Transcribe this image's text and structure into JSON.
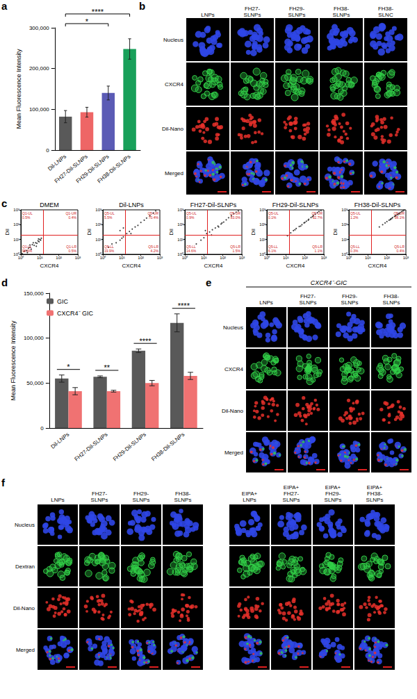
{
  "chart_data": [
    {
      "panel": "a",
      "type": "bar",
      "y_label": "Mean Fluorescence Intensity",
      "categories": [
        "Dil-LNPs",
        "FH27-Dil-SLNPs",
        "FH29-Dil-SLNPs",
        "FH38-Dil-SLNPs"
      ],
      "values": [
        82000,
        93000,
        140000,
        248000
      ],
      "errors": [
        15000,
        12000,
        17000,
        25000
      ],
      "colors": [
        "#595959",
        "#ee6666",
        "#5b5bb5",
        "#19a05a"
      ],
      "ylim": [
        0,
        300000
      ],
      "yticks": [
        0,
        100000,
        200000,
        300000
      ],
      "grid": false,
      "annotations": [
        {
          "from": 0,
          "to": 2,
          "text": "*"
        },
        {
          "from": 0,
          "to": 3,
          "text": "****"
        }
      ]
    },
    {
      "panel": "c",
      "type": "scatter",
      "title": "DMEM",
      "x_label": "CXCR4",
      "y_label": "Dil",
      "log": true,
      "xlim": [
        1,
        1000
      ],
      "ylim": [
        1,
        1000
      ],
      "xticks": [
        {
          "value": 1,
          "label": "10⁰"
        },
        {
          "value": 10,
          "label": "10¹"
        },
        {
          "value": 100,
          "label": "10²"
        },
        {
          "value": 1000,
          "label": "10³"
        }
      ],
      "yticks": [
        {
          "value": 1,
          "label": "10⁰"
        },
        {
          "value": 10,
          "label": "10¹"
        },
        {
          "value": 100,
          "label": "10²"
        },
        {
          "value": 1000,
          "label": "10³"
        }
      ],
      "x": [
        1.2,
        1.5,
        2,
        2.5,
        3,
        3.5,
        4,
        5,
        6,
        7,
        8,
        9,
        10,
        11,
        12,
        2.2,
        4.5,
        6.5,
        3,
        8.5
      ],
      "y": [
        1.1,
        1.6,
        1.8,
        2.6,
        3,
        2.2,
        4.5,
        4,
        6,
        5.5,
        8,
        7,
        10,
        9,
        12,
        1.3,
        6,
        3.5,
        4.2,
        11
      ],
      "gate": {
        "x": 15,
        "y": 20
      },
      "quadrants": [
        {
          "position": "UL",
          "label": "Q1-UL",
          "value": 0.5,
          "value_label": "0.5%"
        },
        {
          "position": "UR",
          "label": "Q1-UR",
          "value": 0.4,
          "value_label": "0.4%"
        },
        {
          "position": "LL",
          "label": "Q1-LL",
          "value": 98.6,
          "value_label": "98.6%"
        },
        {
          "position": "LR",
          "label": "Q1-LR",
          "value": 0.5,
          "value_label": "0.5%"
        }
      ]
    },
    {
      "panel": "c",
      "type": "scatter",
      "title": "Dil-LNPs",
      "x_label": "CXCR4",
      "y_label": "Dil",
      "log": true,
      "xlim": [
        1,
        1000
      ],
      "ylim": [
        1,
        1000
      ],
      "xticks": [
        {
          "value": 1,
          "label": "10⁰"
        },
        {
          "value": 10,
          "label": "10¹"
        },
        {
          "value": 100,
          "label": "10²"
        },
        {
          "value": 1000,
          "label": "10³"
        }
      ],
      "yticks": [
        {
          "value": 1,
          "label": "10⁰"
        },
        {
          "value": 10,
          "label": "10¹"
        },
        {
          "value": 100,
          "label": "10²"
        },
        {
          "value": 1000,
          "label": "10³"
        }
      ],
      "x": [
        2,
        3,
        5,
        8,
        10,
        12,
        18,
        25,
        35,
        50,
        70,
        100,
        150,
        200,
        300,
        450,
        600,
        8,
        12,
        30
      ],
      "y": [
        3,
        5,
        6,
        9,
        12,
        15,
        25,
        35,
        50,
        70,
        90,
        140,
        200,
        280,
        400,
        600,
        850,
        40,
        60,
        25
      ],
      "gate": {
        "x": 15,
        "y": 20
      },
      "quadrants": [
        {
          "position": "UL",
          "label": "Q5-UL",
          "value": 5.5,
          "value_label": "5.5%"
        },
        {
          "position": "UR",
          "label": "Q5-UR",
          "value": 70.4,
          "value_label": "70.4%"
        },
        {
          "position": "LL",
          "label": "Q5-LL",
          "value": 19.9,
          "value_label": "19.9%"
        },
        {
          "position": "LR",
          "label": "Q5-LR",
          "value": 4.2,
          "value_label": "4.2%"
        }
      ]
    },
    {
      "panel": "c",
      "type": "scatter",
      "title": "FH27-Dil-SLNPs",
      "x_label": "CXCR4",
      "y_label": "Dil",
      "log": true,
      "xlim": [
        1,
        1000
      ],
      "ylim": [
        1,
        1000
      ],
      "xticks": [
        {
          "value": 1,
          "label": "10⁰"
        },
        {
          "value": 10,
          "label": "10¹"
        },
        {
          "value": 100,
          "label": "10²"
        },
        {
          "value": 1000,
          "label": "10³"
        }
      ],
      "yticks": [
        {
          "value": 1,
          "label": "10⁰"
        },
        {
          "value": 10,
          "label": "10¹"
        },
        {
          "value": 100,
          "label": "10²"
        },
        {
          "value": 1000,
          "label": "10³"
        }
      ],
      "x": [
        4,
        7,
        10,
        14,
        20,
        28,
        40,
        55,
        80,
        110,
        150,
        200,
        280,
        380,
        500,
        650,
        12,
        25,
        60,
        90
      ],
      "y": [
        5,
        9,
        13,
        25,
        32,
        45,
        60,
        80,
        110,
        150,
        210,
        290,
        400,
        550,
        700,
        850,
        40,
        20,
        70,
        130
      ],
      "gate": {
        "x": 15,
        "y": 20
      },
      "quadrants": [
        {
          "position": "UL",
          "label": "Q5-UL",
          "value": 0.9,
          "value_label": "0.9%"
        },
        {
          "position": "UR",
          "label": "Q5-UR",
          "value": 83.0,
          "value_label": "83.0%"
        },
        {
          "position": "LL",
          "label": "Q5-LL",
          "value": 14.6,
          "value_label": "14.6%"
        },
        {
          "position": "LR",
          "label": "Q5-LR",
          "value": 1.5,
          "value_label": "1.5%"
        }
      ]
    },
    {
      "panel": "c",
      "type": "scatter",
      "title": "FH29-Dil-SLNPs",
      "x_label": "CXCR4",
      "y_label": "Dil",
      "log": true,
      "xlim": [
        1,
        1000
      ],
      "ylim": [
        1,
        1000
      ],
      "xticks": [
        {
          "value": 1,
          "label": "10⁰"
        },
        {
          "value": 10,
          "label": "10¹"
        },
        {
          "value": 100,
          "label": "10²"
        },
        {
          "value": 1000,
          "label": "10³"
        }
      ],
      "yticks": [
        {
          "value": 1,
          "label": "10⁰"
        },
        {
          "value": 10,
          "label": "10¹"
        },
        {
          "value": 100,
          "label": "10²"
        },
        {
          "value": 1000,
          "label": "10³"
        }
      ],
      "x": [
        12,
        18,
        25,
        35,
        50,
        70,
        90,
        120,
        160,
        210,
        280,
        350,
        450,
        550,
        700,
        30,
        60,
        100,
        150,
        250
      ],
      "y": [
        18,
        28,
        40,
        55,
        75,
        100,
        130,
        170,
        230,
        300,
        400,
        500,
        650,
        780,
        900,
        45,
        80,
        140,
        200,
        350
      ],
      "gate": {
        "x": 15,
        "y": 20
      },
      "quadrants": [
        {
          "position": "UL",
          "label": "Q5-UL",
          "value": 0.1,
          "value_label": "0.1%"
        },
        {
          "position": "UR",
          "label": "Q5-UR",
          "value": 92.7,
          "value_label": "92.7%"
        },
        {
          "position": "LL",
          "label": "Q5-LL",
          "value": 6.1,
          "value_label": "6.1%"
        },
        {
          "position": "LR",
          "label": "Q5-LR",
          "value": 1.1,
          "value_label": "1.1%"
        }
      ]
    },
    {
      "panel": "c",
      "type": "scatter",
      "title": "FH38-Dil-SLNPs",
      "x_label": "CXCR4",
      "y_label": "Dil",
      "log": true,
      "xlim": [
        1,
        1000
      ],
      "ylim": [
        1,
        1000
      ],
      "xticks": [
        {
          "value": 1,
          "label": "10⁰"
        },
        {
          "value": 10,
          "label": "10¹"
        },
        {
          "value": 100,
          "label": "10²"
        },
        {
          "value": 1000,
          "label": "10³"
        }
      ],
      "yticks": [
        {
          "value": 1,
          "label": "10⁰"
        },
        {
          "value": 10,
          "label": "10¹"
        },
        {
          "value": 100,
          "label": "10²"
        },
        {
          "value": 1000,
          "label": "10³"
        }
      ],
      "x": [
        40,
        60,
        80,
        100,
        130,
        160,
        200,
        250,
        300,
        350,
        420,
        500,
        600,
        700,
        800,
        180,
        280,
        450,
        150,
        380
      ],
      "y": [
        70,
        100,
        130,
        160,
        200,
        240,
        300,
        360,
        420,
        500,
        580,
        650,
        750,
        850,
        950,
        260,
        380,
        550,
        220,
        470
      ],
      "gate": {
        "x": 15,
        "y": 20
      },
      "quadrants": [
        {
          "position": "UL",
          "label": "Q5-UL",
          "value": 1.2,
          "value_label": "1.2%"
        },
        {
          "position": "UR",
          "label": "Q5-UR",
          "value": 98.1,
          "value_label": "98.1%"
        },
        {
          "position": "LL",
          "label": "Q5-LL",
          "value": 0.3,
          "value_label": "0.3%"
        },
        {
          "position": "LR",
          "label": "Q5-LR",
          "value": 0.4,
          "value_label": "0.4%"
        }
      ]
    },
    {
      "panel": "d",
      "type": "bar",
      "y_label": "Mean Fluorescence Intensity",
      "categories": [
        "Dil-LNPs",
        "FH27-Dil-SLNPs",
        "FH29-Dil-SLNPs",
        "FH38-Dil-SLNPs"
      ],
      "series": [
        {
          "name": "GIC",
          "color": "#595959",
          "values": [
            55000,
            57000,
            86000,
            117000
          ],
          "errors": [
            4000,
            1000,
            2000,
            10000
          ]
        },
        {
          "name": "CXCR4⁻ GIC",
          "color": "#f07272",
          "values": [
            41000,
            41000,
            50000,
            58000
          ],
          "errors": [
            4000,
            1000,
            3000,
            4000
          ]
        }
      ],
      "legend": "top-left",
      "ylim": [
        0,
        150000
      ],
      "yticks": [
        0,
        50000,
        100000,
        150000
      ],
      "grid": false,
      "annotations": [
        {
          "category": 0,
          "text": "*"
        },
        {
          "category": 1,
          "text": "**"
        },
        {
          "category": 2,
          "text": "****"
        },
        {
          "category": 3,
          "text": "****"
        }
      ]
    }
  ],
  "image_panels": [
    {
      "panel": "b",
      "groups": [
        {
          "columns": [
            "LNPs",
            "FH27-SLNPs",
            "FH29-SLNPs",
            "FH38-SLNPs",
            "FH38-SLNC"
          ],
          "rows": [
            "Nucleus",
            "CXCR4",
            "Dil-Nano",
            "Merged"
          ]
        }
      ]
    },
    {
      "panel": "e",
      "title": "CXCR4⁻-GIC",
      "groups": [
        {
          "columns": [
            "LNPs",
            "FH27-SLNPs",
            "FH29-SLNPs",
            "FH38-SLNPs"
          ],
          "rows": [
            "Nucleus",
            "CXCR4",
            "Dil-Nano",
            "Merged"
          ]
        }
      ]
    },
    {
      "panel": "f",
      "groups": [
        {
          "columns": [
            "LNPs",
            "FH27-SLNPs",
            "FH29-SLNPs",
            "FH38-SLNPs"
          ],
          "rows": [
            "Nucleus",
            "Dextran",
            "Dil-Nano",
            "Merged"
          ]
        },
        {
          "columns": [
            "EIPA+ LNPs",
            "EIPA+ FH27-SLNPs",
            "EIPA+ FH29-SLNPs",
            "EIPA+ FH38-SLNPs"
          ]
        }
      ]
    }
  ]
}
